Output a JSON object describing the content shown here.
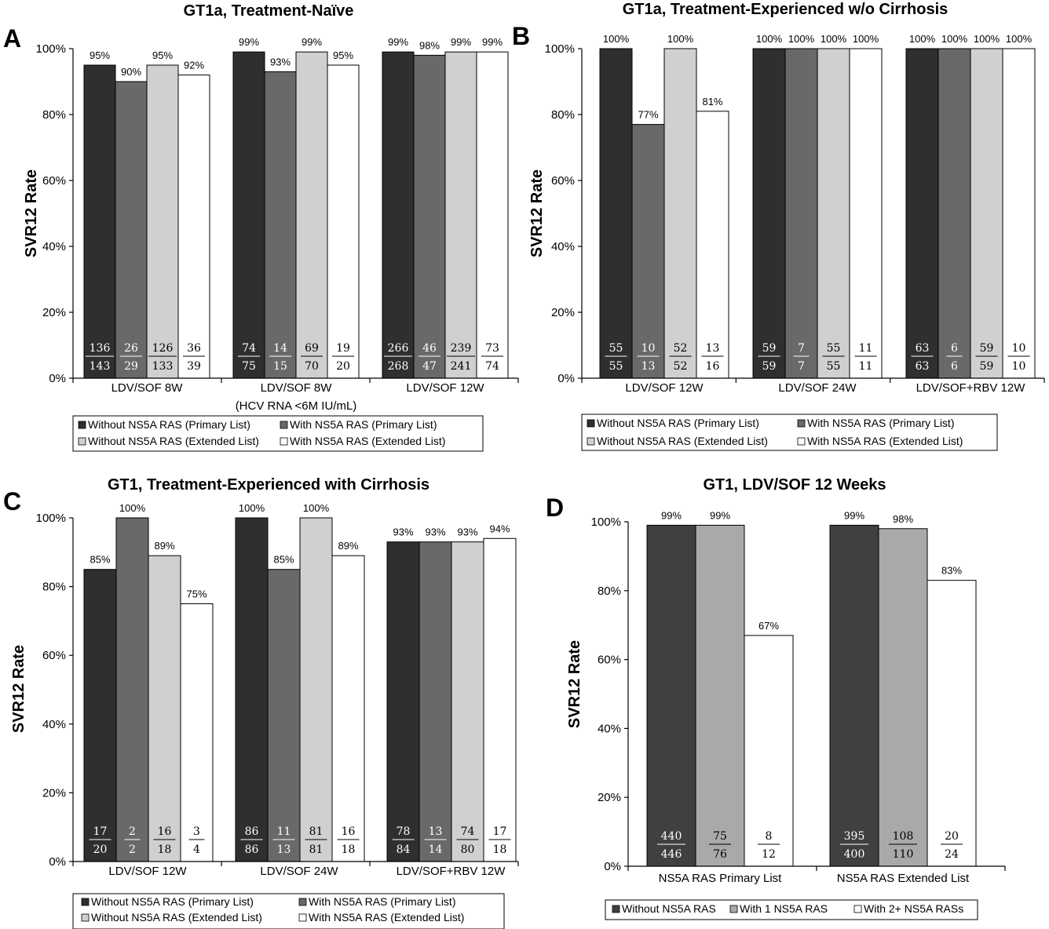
{
  "colors": {
    "primary_without": "#2f2f2f",
    "primary_with": "#696969",
    "extended_without": "#d0d0d0",
    "extended_with": "#ffffff",
    "d_without": "#404040",
    "d_one": "#a9a9a9",
    "d_two": "#ffffff"
  },
  "chart_data": [
    {
      "panel": "A",
      "type": "bar",
      "title": "GT1a, Treatment-Naïve",
      "ylabel": "SVR12 Rate",
      "ylim": [
        0,
        100
      ],
      "yticks": [
        "0%",
        "20%",
        "40%",
        "60%",
        "80%",
        "100%"
      ],
      "categories": [
        {
          "label": "LDV/SOF 8W",
          "sublabel": ""
        },
        {
          "label": "LDV/SOF 8W",
          "sublabel": "(HCV RNA <6M IU/mL)"
        },
        {
          "label": "LDV/SOF 12W",
          "sublabel": ""
        }
      ],
      "series": [
        {
          "name": "Without NS5A RAS (Primary List)",
          "values": [
            95,
            99,
            99
          ],
          "labels": [
            "95%",
            "99%",
            "99%"
          ],
          "num": [
            "136",
            "74",
            "266"
          ],
          "den": [
            "143",
            "75",
            "268"
          ]
        },
        {
          "name": "With NS5A RAS (Primary List)",
          "values": [
            90,
            93,
            98
          ],
          "labels": [
            "90%",
            "93%",
            "98%"
          ],
          "num": [
            "26",
            "14",
            "46"
          ],
          "den": [
            "29",
            "15",
            "47"
          ]
        },
        {
          "name": "Without NS5A RAS (Extended List)",
          "values": [
            95,
            99,
            99
          ],
          "labels": [
            "95%",
            "99%",
            "99%"
          ],
          "num": [
            "126",
            "69",
            "239"
          ],
          "den": [
            "133",
            "70",
            "241"
          ]
        },
        {
          "name": "With NS5A RAS (Extended List)",
          "values": [
            92,
            95,
            99
          ],
          "labels": [
            "92%",
            "95%",
            "99%"
          ],
          "num": [
            "36",
            "19",
            "73"
          ],
          "den": [
            "39",
            "20",
            "74"
          ]
        }
      ]
    },
    {
      "panel": "B",
      "type": "bar",
      "title": "GT1a, Treatment-Experienced w/o Cirrhosis",
      "ylabel": "SVR12 Rate",
      "ylim": [
        0,
        100
      ],
      "yticks": [
        "0%",
        "20%",
        "40%",
        "60%",
        "80%",
        "100%"
      ],
      "categories": [
        {
          "label": "LDV/SOF 12W",
          "sublabel": ""
        },
        {
          "label": "LDV/SOF 24W",
          "sublabel": ""
        },
        {
          "label": "LDV/SOF+RBV 12W",
          "sublabel": ""
        }
      ],
      "series": [
        {
          "name": "Without NS5A RAS (Primary List)",
          "values": [
            100,
            100,
            100
          ],
          "labels": [
            "100%",
            "100%",
            "100%"
          ],
          "num": [
            "55",
            "59",
            "63"
          ],
          "den": [
            "55",
            "59",
            "63"
          ]
        },
        {
          "name": "With NS5A RAS (Primary List)",
          "values": [
            77,
            100,
            100
          ],
          "labels": [
            "77%",
            "100%",
            "100%"
          ],
          "num": [
            "10",
            "7",
            "6"
          ],
          "den": [
            "13",
            "7",
            "6"
          ]
        },
        {
          "name": "Without NS5A RAS (Extended List)",
          "values": [
            100,
            100,
            100
          ],
          "labels": [
            "100%",
            "100%",
            "100%"
          ],
          "num": [
            "52",
            "55",
            "59"
          ],
          "den": [
            "52",
            "55",
            "59"
          ]
        },
        {
          "name": "With NS5A RAS (Extended List)",
          "values": [
            81,
            100,
            100
          ],
          "labels": [
            "81%",
            "100%",
            "100%"
          ],
          "num": [
            "13",
            "11",
            "10"
          ],
          "den": [
            "16",
            "11",
            "10"
          ]
        }
      ]
    },
    {
      "panel": "C",
      "type": "bar",
      "title": "GT1, Treatment-Experienced with Cirrhosis",
      "ylabel": "SVR12 Rate",
      "ylim": [
        0,
        100
      ],
      "yticks": [
        "0%",
        "20%",
        "40%",
        "60%",
        "80%",
        "100%"
      ],
      "categories": [
        {
          "label": "LDV/SOF 12W",
          "sublabel": ""
        },
        {
          "label": "LDV/SOF 24W",
          "sublabel": ""
        },
        {
          "label": "LDV/SOF+RBV 12W",
          "sublabel": ""
        }
      ],
      "series": [
        {
          "name": "Without NS5A RAS (Primary List)",
          "values": [
            85,
            100,
            93
          ],
          "labels": [
            "85%",
            "100%",
            "93%"
          ],
          "num": [
            "17",
            "86",
            "78"
          ],
          "den": [
            "20",
            "86",
            "84"
          ]
        },
        {
          "name": "With NS5A RAS (Primary List)",
          "values": [
            100,
            85,
            93
          ],
          "labels": [
            "100%",
            "85%",
            "93%"
          ],
          "num": [
            "2",
            "11",
            "13"
          ],
          "den": [
            "2",
            "13",
            "14"
          ]
        },
        {
          "name": "Without NS5A RAS (Extended List)",
          "values": [
            89,
            100,
            93
          ],
          "labels": [
            "89%",
            "100%",
            "93%"
          ],
          "num": [
            "16",
            "81",
            "74"
          ],
          "den": [
            "18",
            "81",
            "80"
          ]
        },
        {
          "name": "With NS5A RAS (Extended List)",
          "values": [
            75,
            89,
            94
          ],
          "labels": [
            "75%",
            "89%",
            "94%"
          ],
          "num": [
            "3",
            "16",
            "17"
          ],
          "den": [
            "4",
            "18",
            "18"
          ]
        }
      ]
    },
    {
      "panel": "D",
      "type": "bar",
      "title": "GT1, LDV/SOF 12 Weeks",
      "ylabel": "SVR12 Rate",
      "ylim": [
        0,
        100
      ],
      "yticks": [
        "0%",
        "20%",
        "40%",
        "60%",
        "80%",
        "100%"
      ],
      "categories": [
        {
          "label": "NS5A RAS Primary List",
          "sublabel": ""
        },
        {
          "label": "NS5A RAS Extended List",
          "sublabel": ""
        }
      ],
      "series": [
        {
          "name": "Without NS5A RAS",
          "values": [
            99,
            99
          ],
          "labels": [
            "99%",
            "99%"
          ],
          "num": [
            "440",
            "395"
          ],
          "den": [
            "446",
            "400"
          ]
        },
        {
          "name": "With 1 NS5A RAS",
          "values": [
            99,
            98
          ],
          "labels": [
            "99%",
            "98%"
          ],
          "num": [
            "75",
            "108"
          ],
          "den": [
            "76",
            "110"
          ]
        },
        {
          "name": "With 2+ NS5A RASs",
          "values": [
            67,
            83
          ],
          "labels": [
            "67%",
            "83%"
          ],
          "num": [
            "8",
            "20"
          ],
          "den": [
            "12",
            "24"
          ]
        }
      ]
    }
  ]
}
